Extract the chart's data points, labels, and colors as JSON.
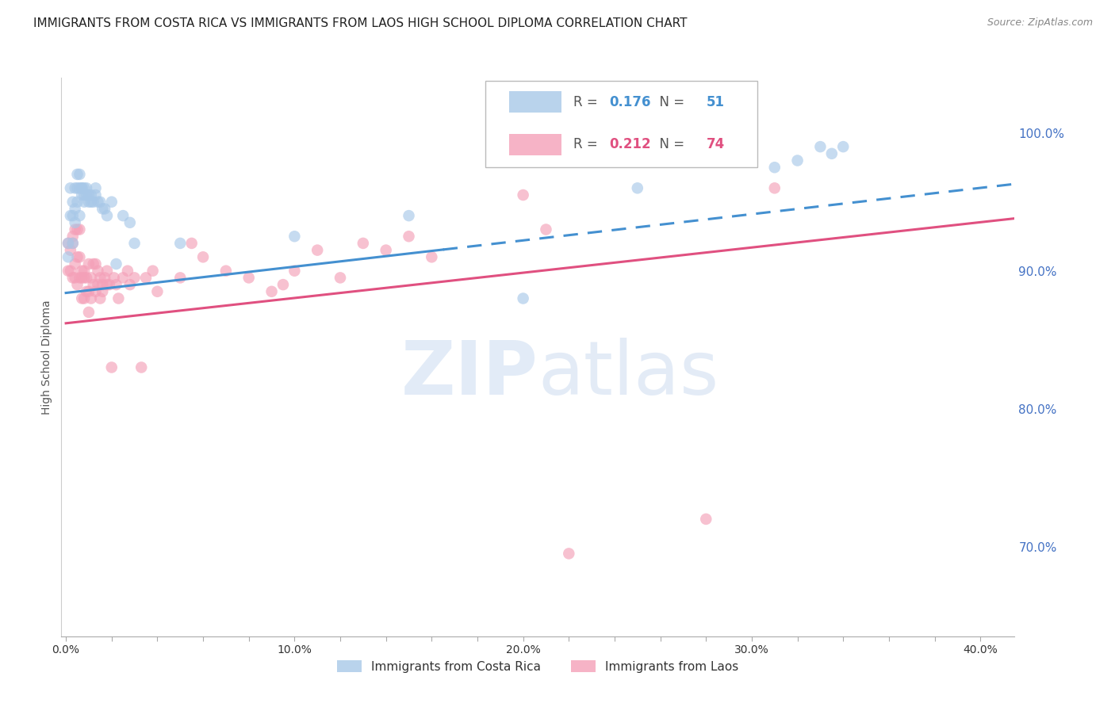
{
  "title": "IMMIGRANTS FROM COSTA RICA VS IMMIGRANTS FROM LAOS HIGH SCHOOL DIPLOMA CORRELATION CHART",
  "source": "Source: ZipAtlas.com",
  "ylabel": "High School Diploma",
  "right_ytick_labels": [
    "70.0%",
    "80.0%",
    "90.0%",
    "100.0%"
  ],
  "right_ytick_values": [
    0.7,
    0.8,
    0.9,
    1.0
  ],
  "xlim": [
    -0.002,
    0.415
  ],
  "ylim": [
    0.635,
    1.04
  ],
  "xtick_labels": [
    "0.0%",
    "",
    "",
    "",
    "",
    "10.0%",
    "",
    "",
    "",
    "",
    "20.0%",
    "",
    "",
    "",
    "",
    "30.0%",
    "",
    "",
    "",
    "",
    "40.0%"
  ],
  "xtick_values": [
    0.0,
    0.02,
    0.04,
    0.06,
    0.08,
    0.1,
    0.12,
    0.14,
    0.16,
    0.18,
    0.2,
    0.22,
    0.24,
    0.26,
    0.28,
    0.3,
    0.32,
    0.34,
    0.36,
    0.38,
    0.4
  ],
  "blue_label": "Immigrants from Costa Rica",
  "pink_label": "Immigrants from Laos",
  "blue_R": 0.176,
  "blue_N": 51,
  "pink_R": 0.212,
  "pink_N": 74,
  "blue_color": "#a8c8e8",
  "pink_color": "#f4a0b8",
  "trend_blue_color": "#4490d0",
  "trend_pink_color": "#e05080",
  "blue_scatter_x": [
    0.001,
    0.001,
    0.002,
    0.002,
    0.003,
    0.003,
    0.003,
    0.004,
    0.004,
    0.004,
    0.005,
    0.005,
    0.005,
    0.006,
    0.006,
    0.006,
    0.007,
    0.007,
    0.007,
    0.008,
    0.008,
    0.008,
    0.009,
    0.009,
    0.01,
    0.01,
    0.011,
    0.011,
    0.012,
    0.013,
    0.013,
    0.014,
    0.015,
    0.016,
    0.017,
    0.018,
    0.02,
    0.022,
    0.025,
    0.028,
    0.03,
    0.05,
    0.1,
    0.15,
    0.2,
    0.25,
    0.31,
    0.32,
    0.33,
    0.335,
    0.34
  ],
  "blue_scatter_y": [
    0.92,
    0.91,
    0.94,
    0.96,
    0.92,
    0.95,
    0.94,
    0.96,
    0.945,
    0.935,
    0.96,
    0.95,
    0.97,
    0.94,
    0.96,
    0.97,
    0.96,
    0.955,
    0.96,
    0.955,
    0.96,
    0.95,
    0.96,
    0.955,
    0.95,
    0.955,
    0.95,
    0.955,
    0.95,
    0.955,
    0.96,
    0.95,
    0.95,
    0.945,
    0.945,
    0.94,
    0.95,
    0.905,
    0.94,
    0.935,
    0.92,
    0.92,
    0.925,
    0.94,
    0.88,
    0.96,
    0.975,
    0.98,
    0.99,
    0.985,
    0.99
  ],
  "pink_scatter_x": [
    0.001,
    0.001,
    0.002,
    0.002,
    0.003,
    0.003,
    0.003,
    0.004,
    0.004,
    0.004,
    0.005,
    0.005,
    0.005,
    0.006,
    0.006,
    0.006,
    0.007,
    0.007,
    0.007,
    0.008,
    0.008,
    0.008,
    0.009,
    0.009,
    0.01,
    0.01,
    0.01,
    0.011,
    0.011,
    0.012,
    0.012,
    0.013,
    0.013,
    0.014,
    0.014,
    0.015,
    0.015,
    0.016,
    0.016,
    0.017,
    0.018,
    0.018,
    0.019,
    0.02,
    0.021,
    0.022,
    0.023,
    0.025,
    0.027,
    0.028,
    0.03,
    0.033,
    0.035,
    0.038,
    0.04,
    0.05,
    0.055,
    0.06,
    0.07,
    0.08,
    0.09,
    0.095,
    0.1,
    0.11,
    0.12,
    0.13,
    0.14,
    0.15,
    0.16,
    0.2,
    0.21,
    0.22,
    0.28,
    0.31
  ],
  "pink_scatter_y": [
    0.92,
    0.9,
    0.915,
    0.9,
    0.92,
    0.895,
    0.925,
    0.93,
    0.895,
    0.905,
    0.93,
    0.91,
    0.89,
    0.93,
    0.91,
    0.895,
    0.895,
    0.9,
    0.88,
    0.895,
    0.88,
    0.9,
    0.895,
    0.885,
    0.905,
    0.885,
    0.87,
    0.895,
    0.88,
    0.905,
    0.89,
    0.905,
    0.885,
    0.9,
    0.89,
    0.895,
    0.88,
    0.89,
    0.885,
    0.895,
    0.89,
    0.9,
    0.89,
    0.83,
    0.895,
    0.89,
    0.88,
    0.895,
    0.9,
    0.89,
    0.895,
    0.83,
    0.895,
    0.9,
    0.885,
    0.895,
    0.92,
    0.91,
    0.9,
    0.895,
    0.885,
    0.89,
    0.9,
    0.915,
    0.895,
    0.92,
    0.915,
    0.925,
    0.91,
    0.955,
    0.93,
    0.695,
    0.72,
    0.96
  ],
  "blue_trend_x0": 0.0,
  "blue_trend_x_solid_end": 0.165,
  "blue_trend_x1": 0.415,
  "blue_trend_y0": 0.884,
  "blue_trend_y1": 0.963,
  "pink_trend_x0": 0.0,
  "pink_trend_x1": 0.415,
  "pink_trend_y0": 0.862,
  "pink_trend_y1": 0.938,
  "watermark_zip": "ZIP",
  "watermark_atlas": "atlas",
  "background_color": "#ffffff",
  "grid_color": "#cccccc",
  "axis_color": "#4472c4",
  "title_fontsize": 11,
  "label_fontsize": 10
}
